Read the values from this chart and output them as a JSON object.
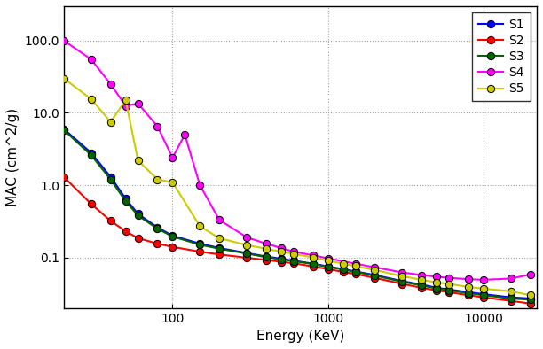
{
  "title": "",
  "xlabel": "Energy (KeV)",
  "ylabel": "MAC (cm^2/g)",
  "series": {
    "S1": {
      "color": "#0000FF",
      "energy": [
        20,
        30,
        40,
        50,
        60,
        80,
        100,
        150,
        200,
        300,
        400,
        500,
        600,
        800,
        1000,
        1250,
        1500,
        2000,
        3000,
        4000,
        5000,
        6000,
        8000,
        10000,
        15000,
        20000
      ],
      "mac": [
        6.0,
        2.8,
        1.3,
        0.65,
        0.4,
        0.26,
        0.2,
        0.155,
        0.135,
        0.115,
        0.103,
        0.096,
        0.09,
        0.082,
        0.075,
        0.069,
        0.064,
        0.057,
        0.047,
        0.042,
        0.038,
        0.036,
        0.033,
        0.031,
        0.028,
        0.027
      ]
    },
    "S2": {
      "color": "#FF0000",
      "energy": [
        20,
        30,
        40,
        50,
        60,
        80,
        100,
        150,
        200,
        300,
        400,
        500,
        600,
        800,
        1000,
        1250,
        1500,
        2000,
        3000,
        4000,
        5000,
        6000,
        8000,
        10000,
        15000,
        20000
      ],
      "mac": [
        1.3,
        0.55,
        0.32,
        0.23,
        0.185,
        0.155,
        0.14,
        0.12,
        0.11,
        0.099,
        0.092,
        0.087,
        0.083,
        0.075,
        0.069,
        0.063,
        0.059,
        0.052,
        0.043,
        0.038,
        0.035,
        0.033,
        0.03,
        0.028,
        0.025,
        0.023
      ]
    },
    "S3": {
      "color": "#006400",
      "energy": [
        20,
        30,
        40,
        50,
        60,
        80,
        100,
        150,
        200,
        300,
        400,
        500,
        600,
        800,
        1000,
        1250,
        1500,
        2000,
        3000,
        4000,
        5000,
        6000,
        8000,
        10000,
        15000,
        20000
      ],
      "mac": [
        5.8,
        2.6,
        1.2,
        0.6,
        0.38,
        0.25,
        0.195,
        0.15,
        0.132,
        0.113,
        0.101,
        0.094,
        0.089,
        0.081,
        0.074,
        0.068,
        0.063,
        0.056,
        0.046,
        0.041,
        0.037,
        0.035,
        0.032,
        0.03,
        0.027,
        0.026
      ]
    },
    "S4": {
      "color": "#FF00FF",
      "energy": [
        20,
        30,
        40,
        50,
        60,
        80,
        100,
        120,
        150,
        200,
        300,
        400,
        500,
        600,
        800,
        1000,
        1500,
        2000,
        3000,
        4000,
        5000,
        6000,
        8000,
        10000,
        15000,
        20000
      ],
      "mac": [
        100.0,
        55.0,
        25.0,
        12.5,
        13.5,
        6.5,
        2.4,
        5.0,
        1.0,
        0.33,
        0.19,
        0.155,
        0.135,
        0.12,
        0.107,
        0.097,
        0.082,
        0.073,
        0.062,
        0.057,
        0.054,
        0.052,
        0.05,
        0.049,
        0.051,
        0.058
      ]
    },
    "S5": {
      "color": "#CCCC00",
      "energy": [
        20,
        30,
        40,
        50,
        60,
        80,
        100,
        150,
        200,
        300,
        400,
        500,
        600,
        800,
        1000,
        1250,
        1500,
        2000,
        3000,
        4000,
        5000,
        6000,
        8000,
        10000,
        15000,
        20000
      ],
      "mac": [
        30.0,
        15.5,
        7.5,
        15.0,
        2.2,
        1.2,
        1.1,
        0.27,
        0.185,
        0.148,
        0.132,
        0.12,
        0.112,
        0.1,
        0.09,
        0.082,
        0.076,
        0.067,
        0.055,
        0.049,
        0.045,
        0.043,
        0.039,
        0.037,
        0.034,
        0.03
      ]
    }
  },
  "xlim": [
    20,
    22000
  ],
  "ylim": [
    0.02,
    300
  ],
  "x_ticks": [
    100,
    1000,
    10000
  ],
  "x_tick_labels": [
    "100",
    "1000",
    "10000"
  ],
  "y_ticks": [
    0.1,
    1.0,
    10.0,
    100.0
  ],
  "y_tick_labels": [
    "0.1",
    "1.0",
    "10.0",
    "100.0"
  ],
  "grid_color": "#999999",
  "bg_color": "#ffffff",
  "marker": "o",
  "markersize": 6,
  "linewidth": 1.5
}
